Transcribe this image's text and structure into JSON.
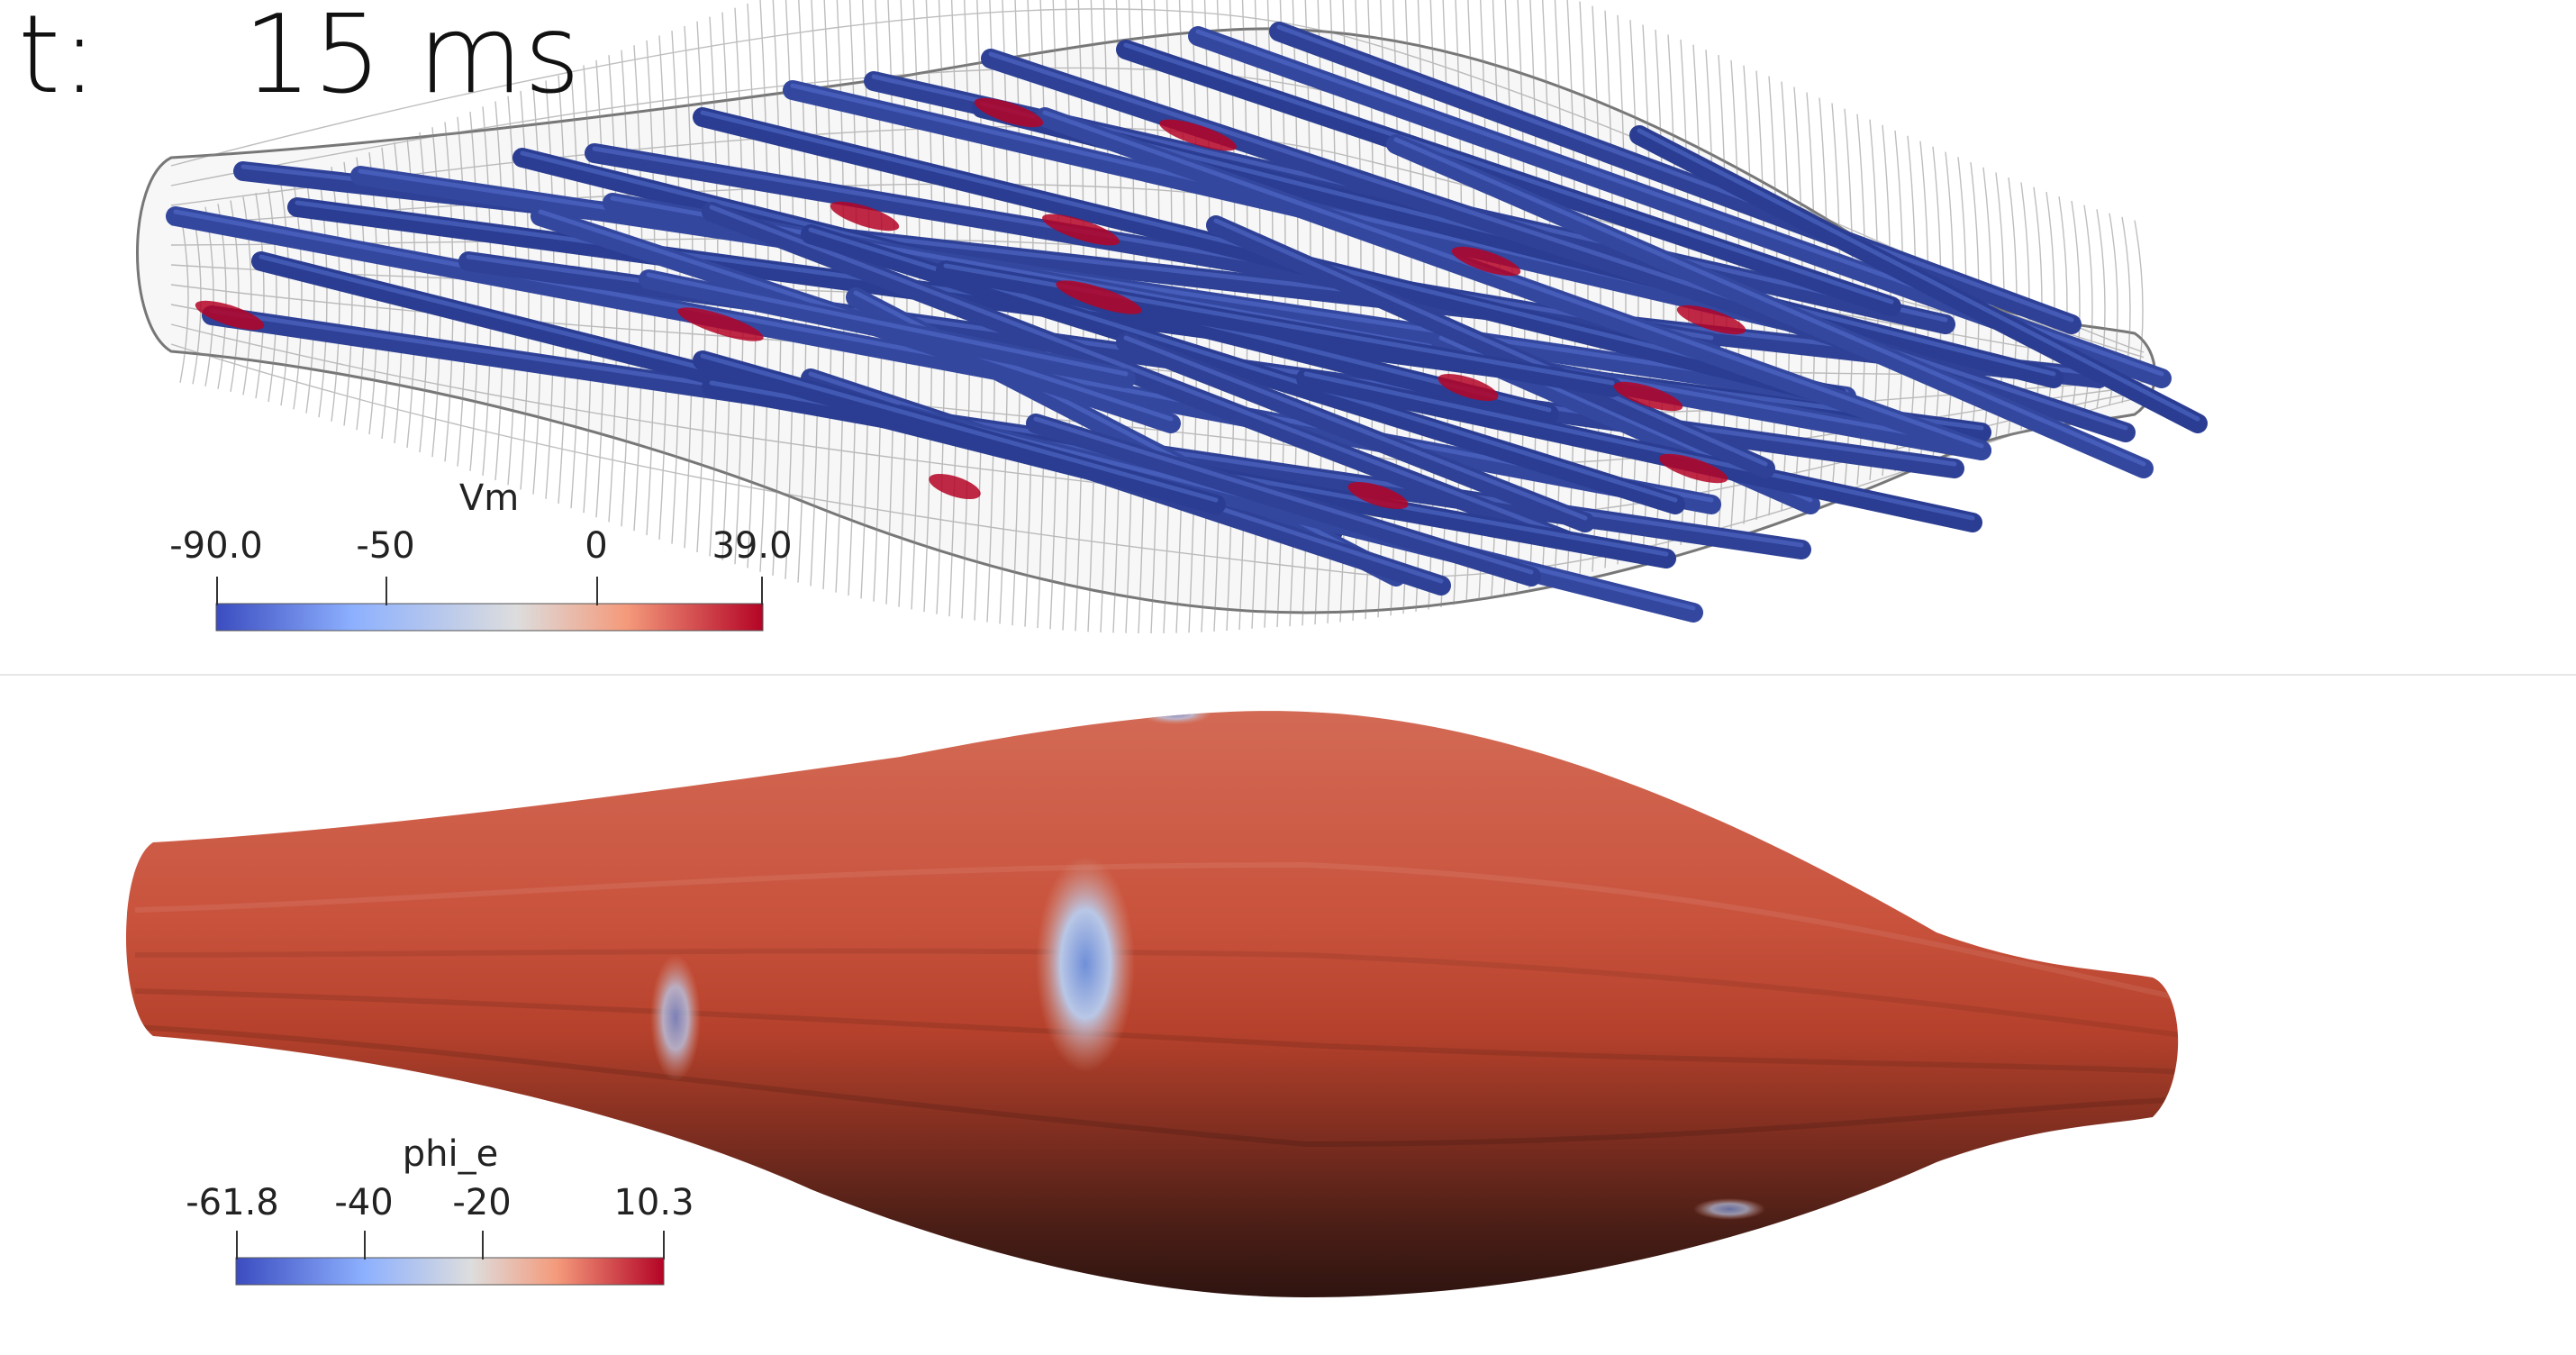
{
  "time": {
    "label": "t:",
    "value": "15 ms"
  },
  "top_view": {
    "field": "Vm",
    "legend": {
      "title": "Vm",
      "ticks": [
        "-90.0",
        "-50",
        "0",
        "39.0"
      ],
      "tick_values": [
        -90.0,
        -50,
        0,
        39.0
      ],
      "range": [
        -90.0,
        39.0
      ],
      "colormap": [
        "#3b4cc0",
        "#8db0fe",
        "#dddddd",
        "#f49a7b",
        "#b40426"
      ]
    },
    "colors": {
      "fiber": "#2a3f9a",
      "fiber_dark": "#1b2a6b",
      "active": "#b40426",
      "mesh": "#5a5a5a"
    }
  },
  "bottom_view": {
    "field": "phi_e",
    "legend": {
      "title": "phi_e",
      "ticks": [
        "-61.8",
        "-40",
        "-20",
        "10.3"
      ],
      "tick_values": [
        -61.8,
        -40,
        -20,
        10.3
      ],
      "range": [
        -61.8,
        10.3
      ],
      "colormap": [
        "#3b4cc0",
        "#8db0fe",
        "#dddddd",
        "#f49a7b",
        "#b40426"
      ]
    },
    "colors": {
      "surface_light": "#cf5a45",
      "surface_mid": "#b8442f",
      "surface_dark": "#3a1a14",
      "spot": "#6d8fd6"
    }
  }
}
